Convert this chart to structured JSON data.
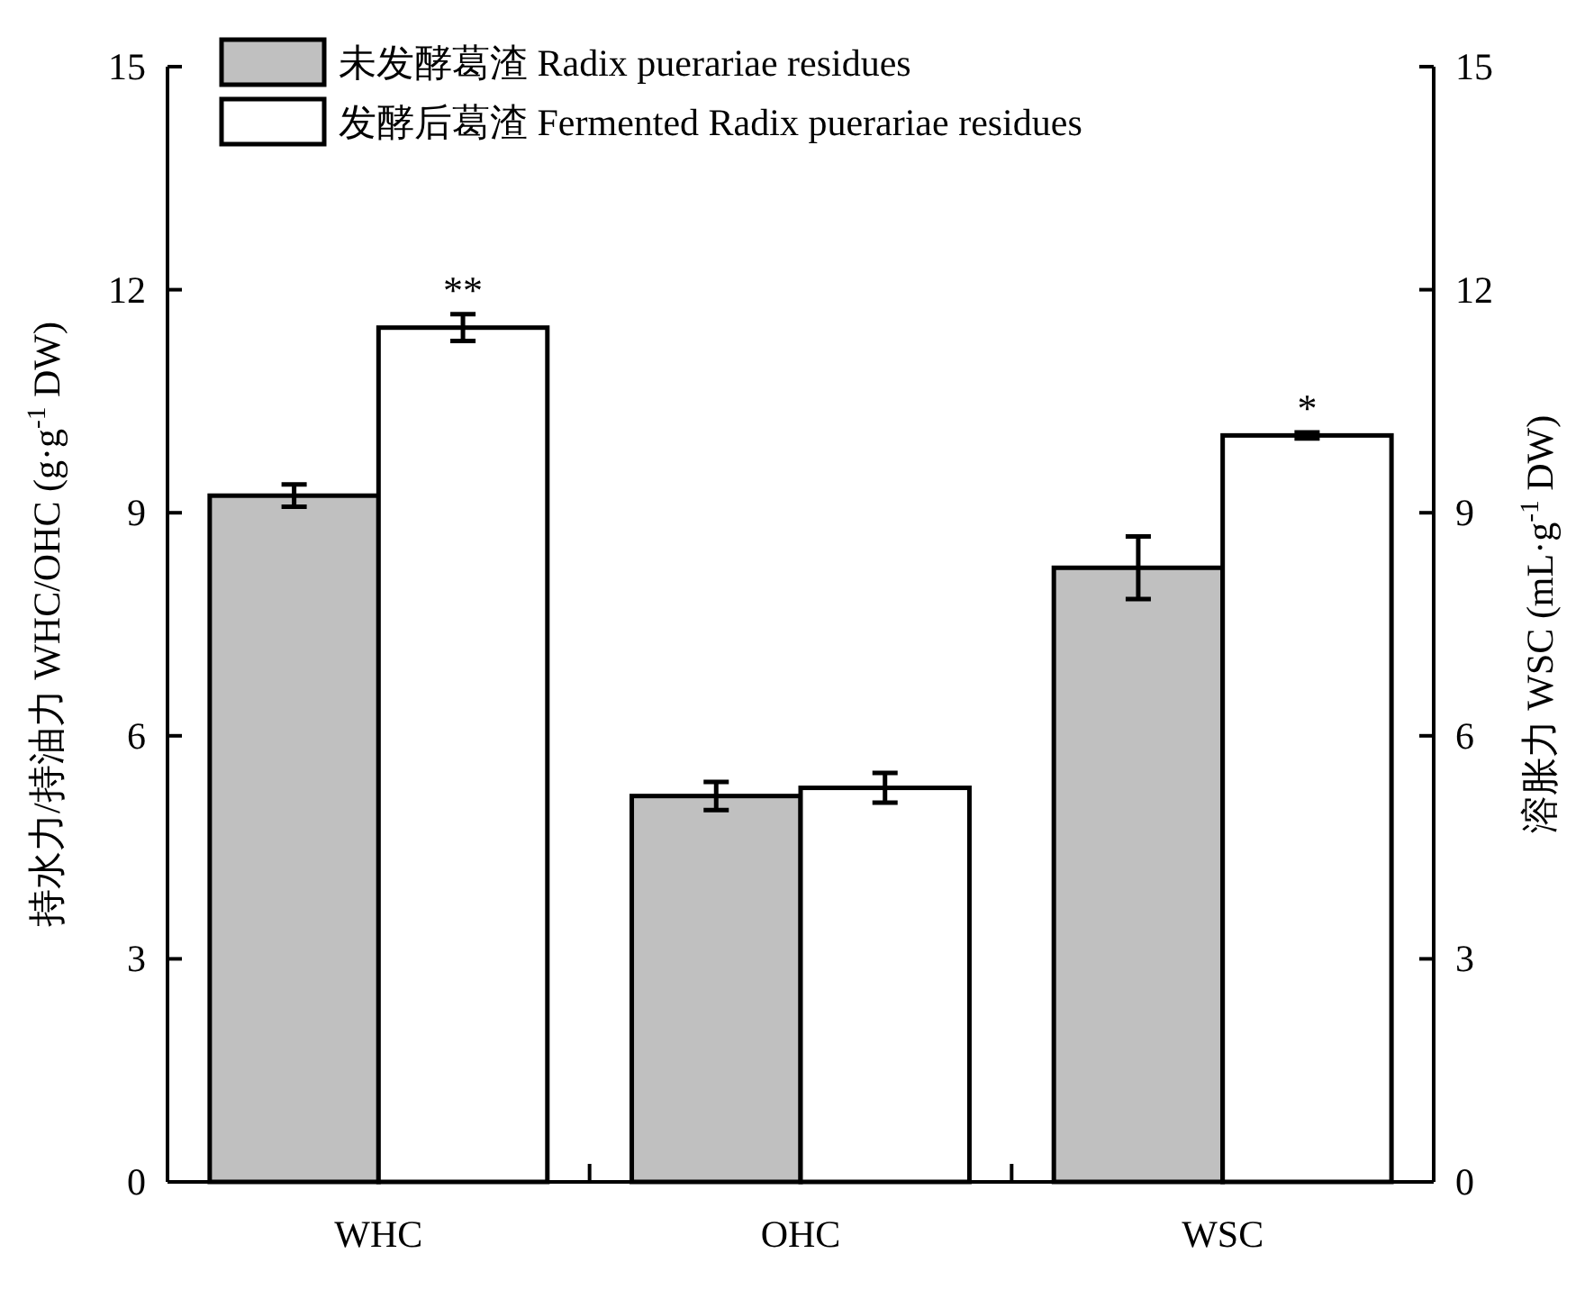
{
  "chart_data": {
    "type": "bar",
    "categories": [
      "WHC",
      "OHC",
      "WSC"
    ],
    "ylabel": "持水力/持油力 WHC/OHC (g·g$^{-1}$ DW)",
    "y2label": "溶胀力 WSC (mL·g$^{-1}$ DW)",
    "ylim": [
      0,
      15
    ],
    "yticks": [
      0,
      3,
      6,
      9,
      12,
      15
    ],
    "y2lim": [
      0,
      15
    ],
    "y2ticks": [
      0,
      3,
      6,
      9,
      12,
      15
    ],
    "series": [
      {
        "name": "未发酵葛渣 Radix puerariae residues",
        "color": "#c0c0c0",
        "values": [
          9.23,
          5.19,
          8.26
        ],
        "errors": [
          0.15,
          0.19,
          0.42
        ]
      },
      {
        "name": "发酵后葛渣 Fermented Radix puerariae residues",
        "color": "#ffffff",
        "values": [
          11.49,
          5.3,
          10.04
        ],
        "errors": [
          0.18,
          0.2,
          0.04
        ]
      }
    ],
    "annotations": [
      {
        "text": "**",
        "x": "WHC",
        "y": 11.49
      },
      {
        "text": "*",
        "x": "WSC",
        "y": 10.04
      }
    ],
    "legend": "top left"
  }
}
